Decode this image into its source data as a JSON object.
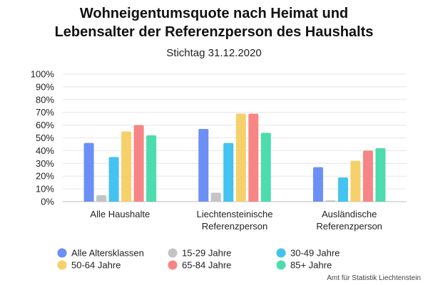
{
  "chart_data": {
    "type": "bar",
    "title_line1": "Wohneigentumsquote nach Heimat und",
    "title_line2": "Lebensalter der Referenzperson des Haushalts",
    "subtitle": "Stichtag 31.12.2020",
    "categories": [
      [
        "Alle Haushalte"
      ],
      [
        "Liechtensteinische",
        "Referenzperson"
      ],
      [
        "Ausländische",
        "Referenzperson"
      ]
    ],
    "series": [
      {
        "name": "Alle Altersklassen",
        "color": "#6b8ff5",
        "values": [
          46,
          57,
          27
        ]
      },
      {
        "name": "15-29 Jahre",
        "color": "#c4c4c4",
        "values": [
          5,
          7,
          1
        ]
      },
      {
        "name": "30-49 Jahre",
        "color": "#44c3f0",
        "values": [
          35,
          46,
          19
        ]
      },
      {
        "name": "50-64 Jahre",
        "color": "#f6d06a",
        "values": [
          55,
          69,
          32
        ]
      },
      {
        "name": "65-84 Jahre",
        "color": "#f78585",
        "values": [
          60,
          69,
          40
        ]
      },
      {
        "name": "85+ Jahre",
        "color": "#4ddcad",
        "values": [
          52,
          54,
          42
        ]
      }
    ],
    "yticks": [
      "0%",
      "10%",
      "20%",
      "30%",
      "40%",
      "50%",
      "60%",
      "70%",
      "80%",
      "90%",
      "100%"
    ],
    "ylim": [
      0,
      100
    ],
    "grid": true,
    "legend_position": "bottom"
  },
  "source_note": "Amt für Statistik Liechtenstein"
}
